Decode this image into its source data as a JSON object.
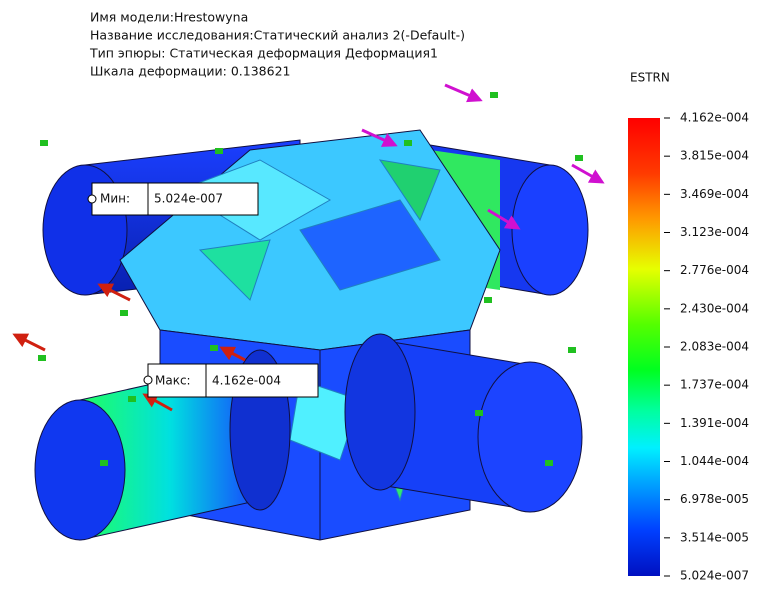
{
  "header": {
    "lines": [
      "Имя модели:Hrestowyna",
      "Название исследования:Статический анализ 2(-Default-)",
      "Тип эпюры: Статическая деформация Деформация1",
      "Шкала деформации: 0.138621"
    ]
  },
  "legend": {
    "title": "ESTRN",
    "labels": [
      "4.162e-004",
      "3.815e-004",
      "3.469e-004",
      "3.123e-004",
      "2.776e-004",
      "2.430e-004",
      "2.083e-004",
      "1.737e-004",
      "1.391e-004",
      "1.044e-004",
      "6.978e-005",
      "3.514e-005",
      "5.024e-007"
    ]
  },
  "callouts": {
    "min": {
      "label": "Мин:",
      "value": "5.024e-007"
    },
    "max": {
      "label": "Макс:",
      "value": "4.162e-004"
    }
  }
}
